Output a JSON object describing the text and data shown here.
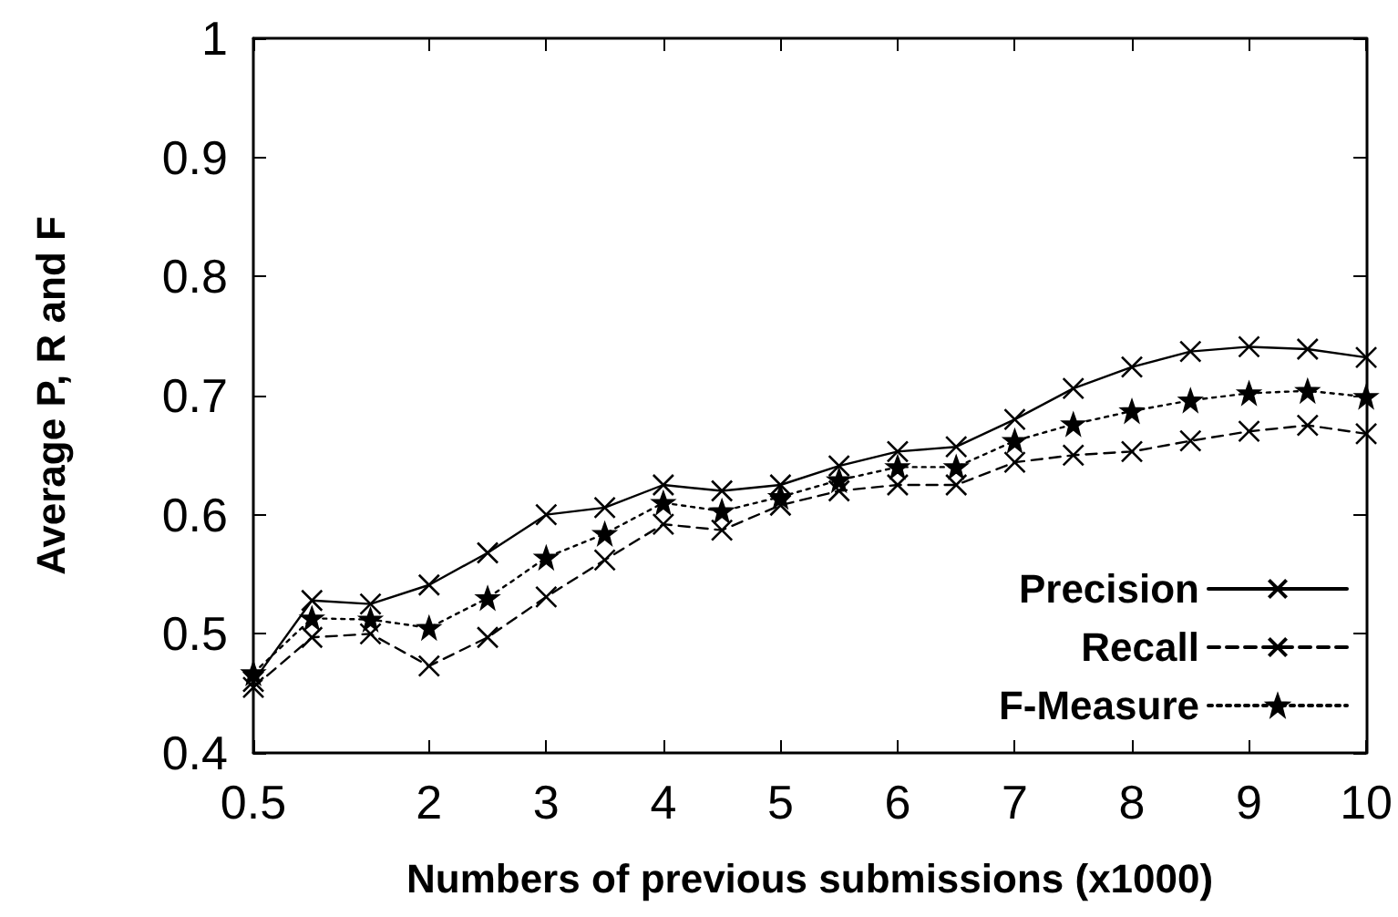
{
  "chart_data": {
    "type": "line",
    "xlabel": "Numbers of previous submissions (x1000)",
    "ylabel": "Average P, R and F",
    "x": [
      0.5,
      1,
      1.5,
      2,
      2.5,
      3,
      3.5,
      4,
      4.5,
      5,
      5.5,
      6,
      6.5,
      7,
      7.5,
      8,
      8.5,
      9,
      9.5,
      10
    ],
    "series": [
      {
        "name": "Precision",
        "color": "#000000",
        "marker": "cross",
        "line_style": "solid",
        "values": [
          0.46,
          0.528,
          0.525,
          0.541,
          0.568,
          0.6,
          0.606,
          0.625,
          0.62,
          0.625,
          0.641,
          0.653,
          0.657,
          0.68,
          0.706,
          0.724,
          0.737,
          0.741,
          0.739,
          0.732
        ]
      },
      {
        "name": "Recall",
        "color": "#000000",
        "marker": "cross",
        "line_style": "dashed",
        "values": [
          0.455,
          0.497,
          0.5,
          0.473,
          0.497,
          0.531,
          0.562,
          0.592,
          0.587,
          0.608,
          0.62,
          0.625,
          0.625,
          0.644,
          0.65,
          0.653,
          0.662,
          0.67,
          0.675,
          0.668
        ]
      },
      {
        "name": "F-Measure",
        "color": "#000000",
        "marker": "star",
        "line_style": "dotted",
        "values": [
          0.467,
          0.513,
          0.512,
          0.505,
          0.53,
          0.564,
          0.584,
          0.61,
          0.603,
          0.615,
          0.629,
          0.64,
          0.64,
          0.662,
          0.676,
          0.687,
          0.696,
          0.702,
          0.704,
          0.699
        ]
      }
    ],
    "xlim": [
      0.5,
      10
    ],
    "xticks": [
      0.5,
      2,
      3,
      4,
      5,
      6,
      7,
      8,
      9,
      10
    ],
    "ylim": [
      0.4,
      1
    ],
    "yticks": [
      0.4,
      0.5,
      0.6,
      0.7,
      0.8,
      0.9,
      1
    ],
    "grid": false,
    "legend": "bottom right"
  }
}
